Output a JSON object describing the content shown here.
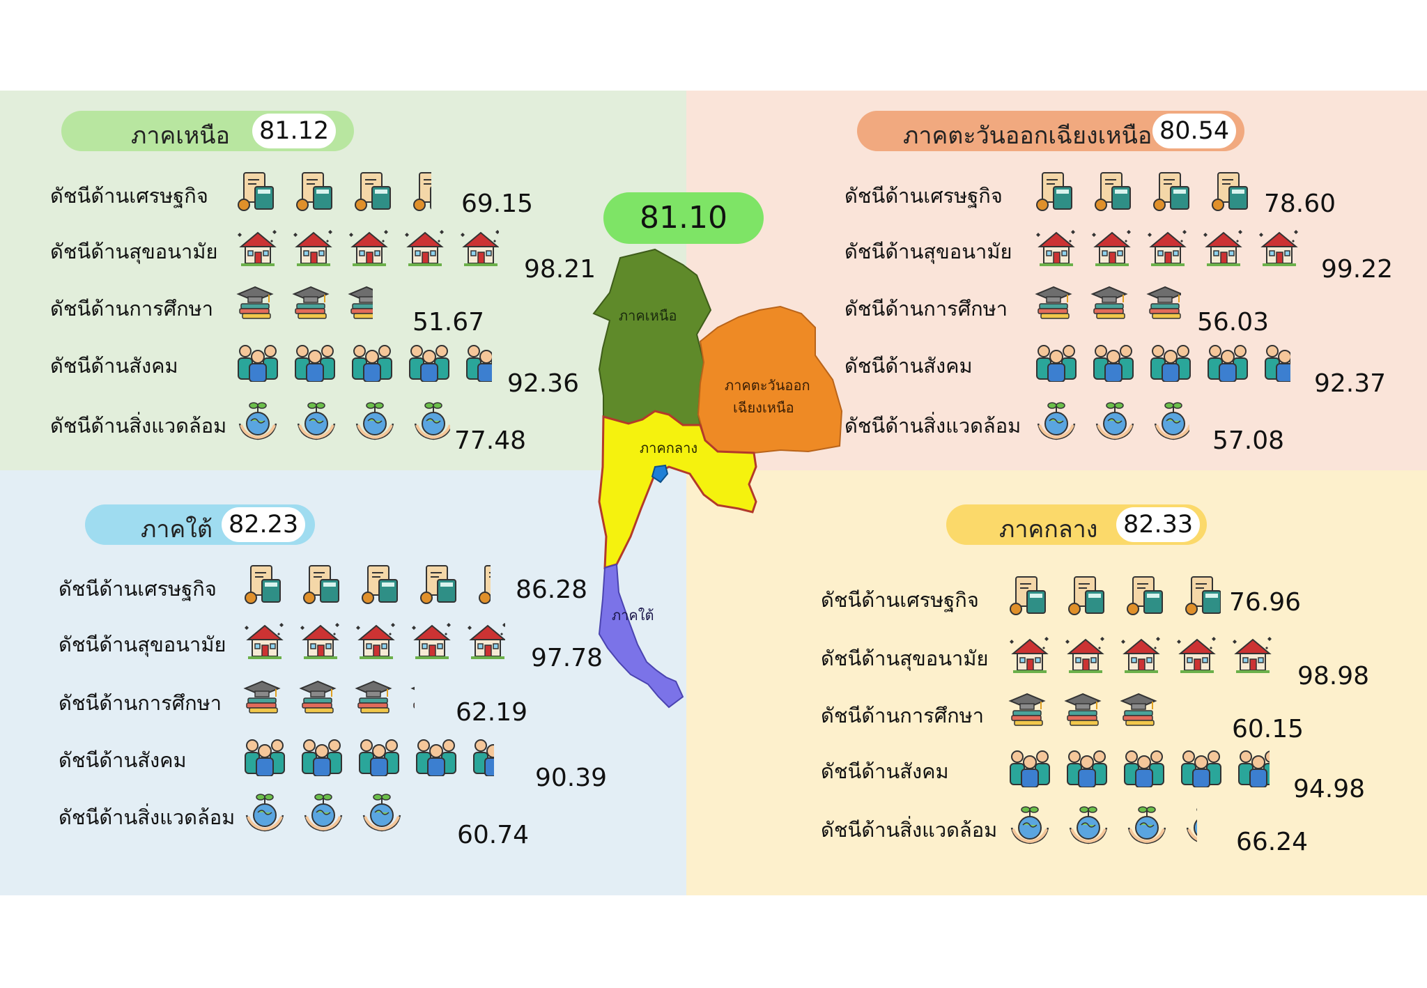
{
  "overall_score": "81.10",
  "map": {
    "north_label": "ภาคเหนือ",
    "northeast_label_1": "ภาคตะวันออก",
    "northeast_label_2": "เฉียงเหนือ",
    "central_label": "ภาคกลาง",
    "south_label": "ภาคใต้"
  },
  "regions": {
    "north": {
      "name": "ภาคเหนือ",
      "score": "81.12",
      "indices": [
        {
          "label": "ดัชนีด้านเศรษฐกิจ",
          "value": "69.15",
          "level": 0.6915
        },
        {
          "label": "ดัชนีด้านสุขอนามัย",
          "value": "98.21",
          "level": 0.9821
        },
        {
          "label": "ดัชนีด้านการศึกษา",
          "value": "51.67",
          "level": 0.5167
        },
        {
          "label": "ดัชนีด้านสังคม",
          "value": "92.36",
          "level": 0.9236
        },
        {
          "label": "ดัชนีด้านสิ่งแวดล้อม",
          "value": "77.48",
          "level": 0.7748
        }
      ]
    },
    "northeast": {
      "name": "ภาคตะวันออกเฉียงเหนือ",
      "score": "80.54",
      "indices": [
        {
          "label": "ดัชนีด้านเศรษฐกิจ",
          "value": "78.60",
          "level": 0.786
        },
        {
          "label": "ดัชนีด้านสุขอนามัย",
          "value": "99.22",
          "level": 0.9922
        },
        {
          "label": "ดัชนีด้านการศึกษา",
          "value": "56.03",
          "level": 0.5603
        },
        {
          "label": "ดัชนีด้านสังคม",
          "value": "92.37",
          "level": 0.9237
        },
        {
          "label": "ดัชนีด้านสิ่งแวดล้อม",
          "value": "57.08",
          "level": 0.5708
        }
      ]
    },
    "south": {
      "name": "ภาคใต้",
      "score": "82.23",
      "indices": [
        {
          "label": "ดัชนีด้านเศรษฐกิจ",
          "value": "86.28",
          "level": 0.8628
        },
        {
          "label": "ดัชนีด้านสุขอนามัย",
          "value": "97.78",
          "level": 0.9778
        },
        {
          "label": "ดัชนีด้านการศึกษา",
          "value": "62.19",
          "level": 0.6219
        },
        {
          "label": "ดัชนีด้านสังคม",
          "value": "90.39",
          "level": 0.9039
        },
        {
          "label": "ดัชนีด้านสิ่งแวดล้อม",
          "value": "60.74",
          "level": 0.6074
        }
      ]
    },
    "central": {
      "name": "ภาคกลาง",
      "score": "82.33",
      "indices": [
        {
          "label": "ดัชนีด้านเศรษฐกิจ",
          "value": "76.96",
          "level": 0.7696
        },
        {
          "label": "ดัชนีด้านสุขอนามัย",
          "value": "98.98",
          "level": 0.9898
        },
        {
          "label": "ดัชนีด้านการศึกษา",
          "value": "60.15",
          "level": 0.6015
        },
        {
          "label": "ดัชนีด้านสังคม",
          "value": "94.98",
          "level": 0.9498
        },
        {
          "label": "ดัชนีด้านสิ่งแวดล้อม",
          "value": "66.24",
          "level": 0.6624
        }
      ]
    }
  },
  "colors": {
    "north_bg": "#e2eedb",
    "northeast_bg": "#fae4d9",
    "south_bg": "#e3eef5",
    "central_bg": "#fdf0cc",
    "north_pill": "#b8e6a0",
    "northeast_pill": "#f1a97f",
    "south_pill": "#9fdcf0",
    "central_pill": "#fbd96a",
    "total_pill": "#7ee466",
    "map_north": "#5f8a2a",
    "map_northeast": "#ee8a25",
    "map_central": "#f5f20e",
    "map_south": "#7b73e8"
  },
  "icon_names": [
    "finance-icon",
    "health-house-icon",
    "education-books-icon",
    "social-people-icon",
    "environment-globe-icon"
  ]
}
